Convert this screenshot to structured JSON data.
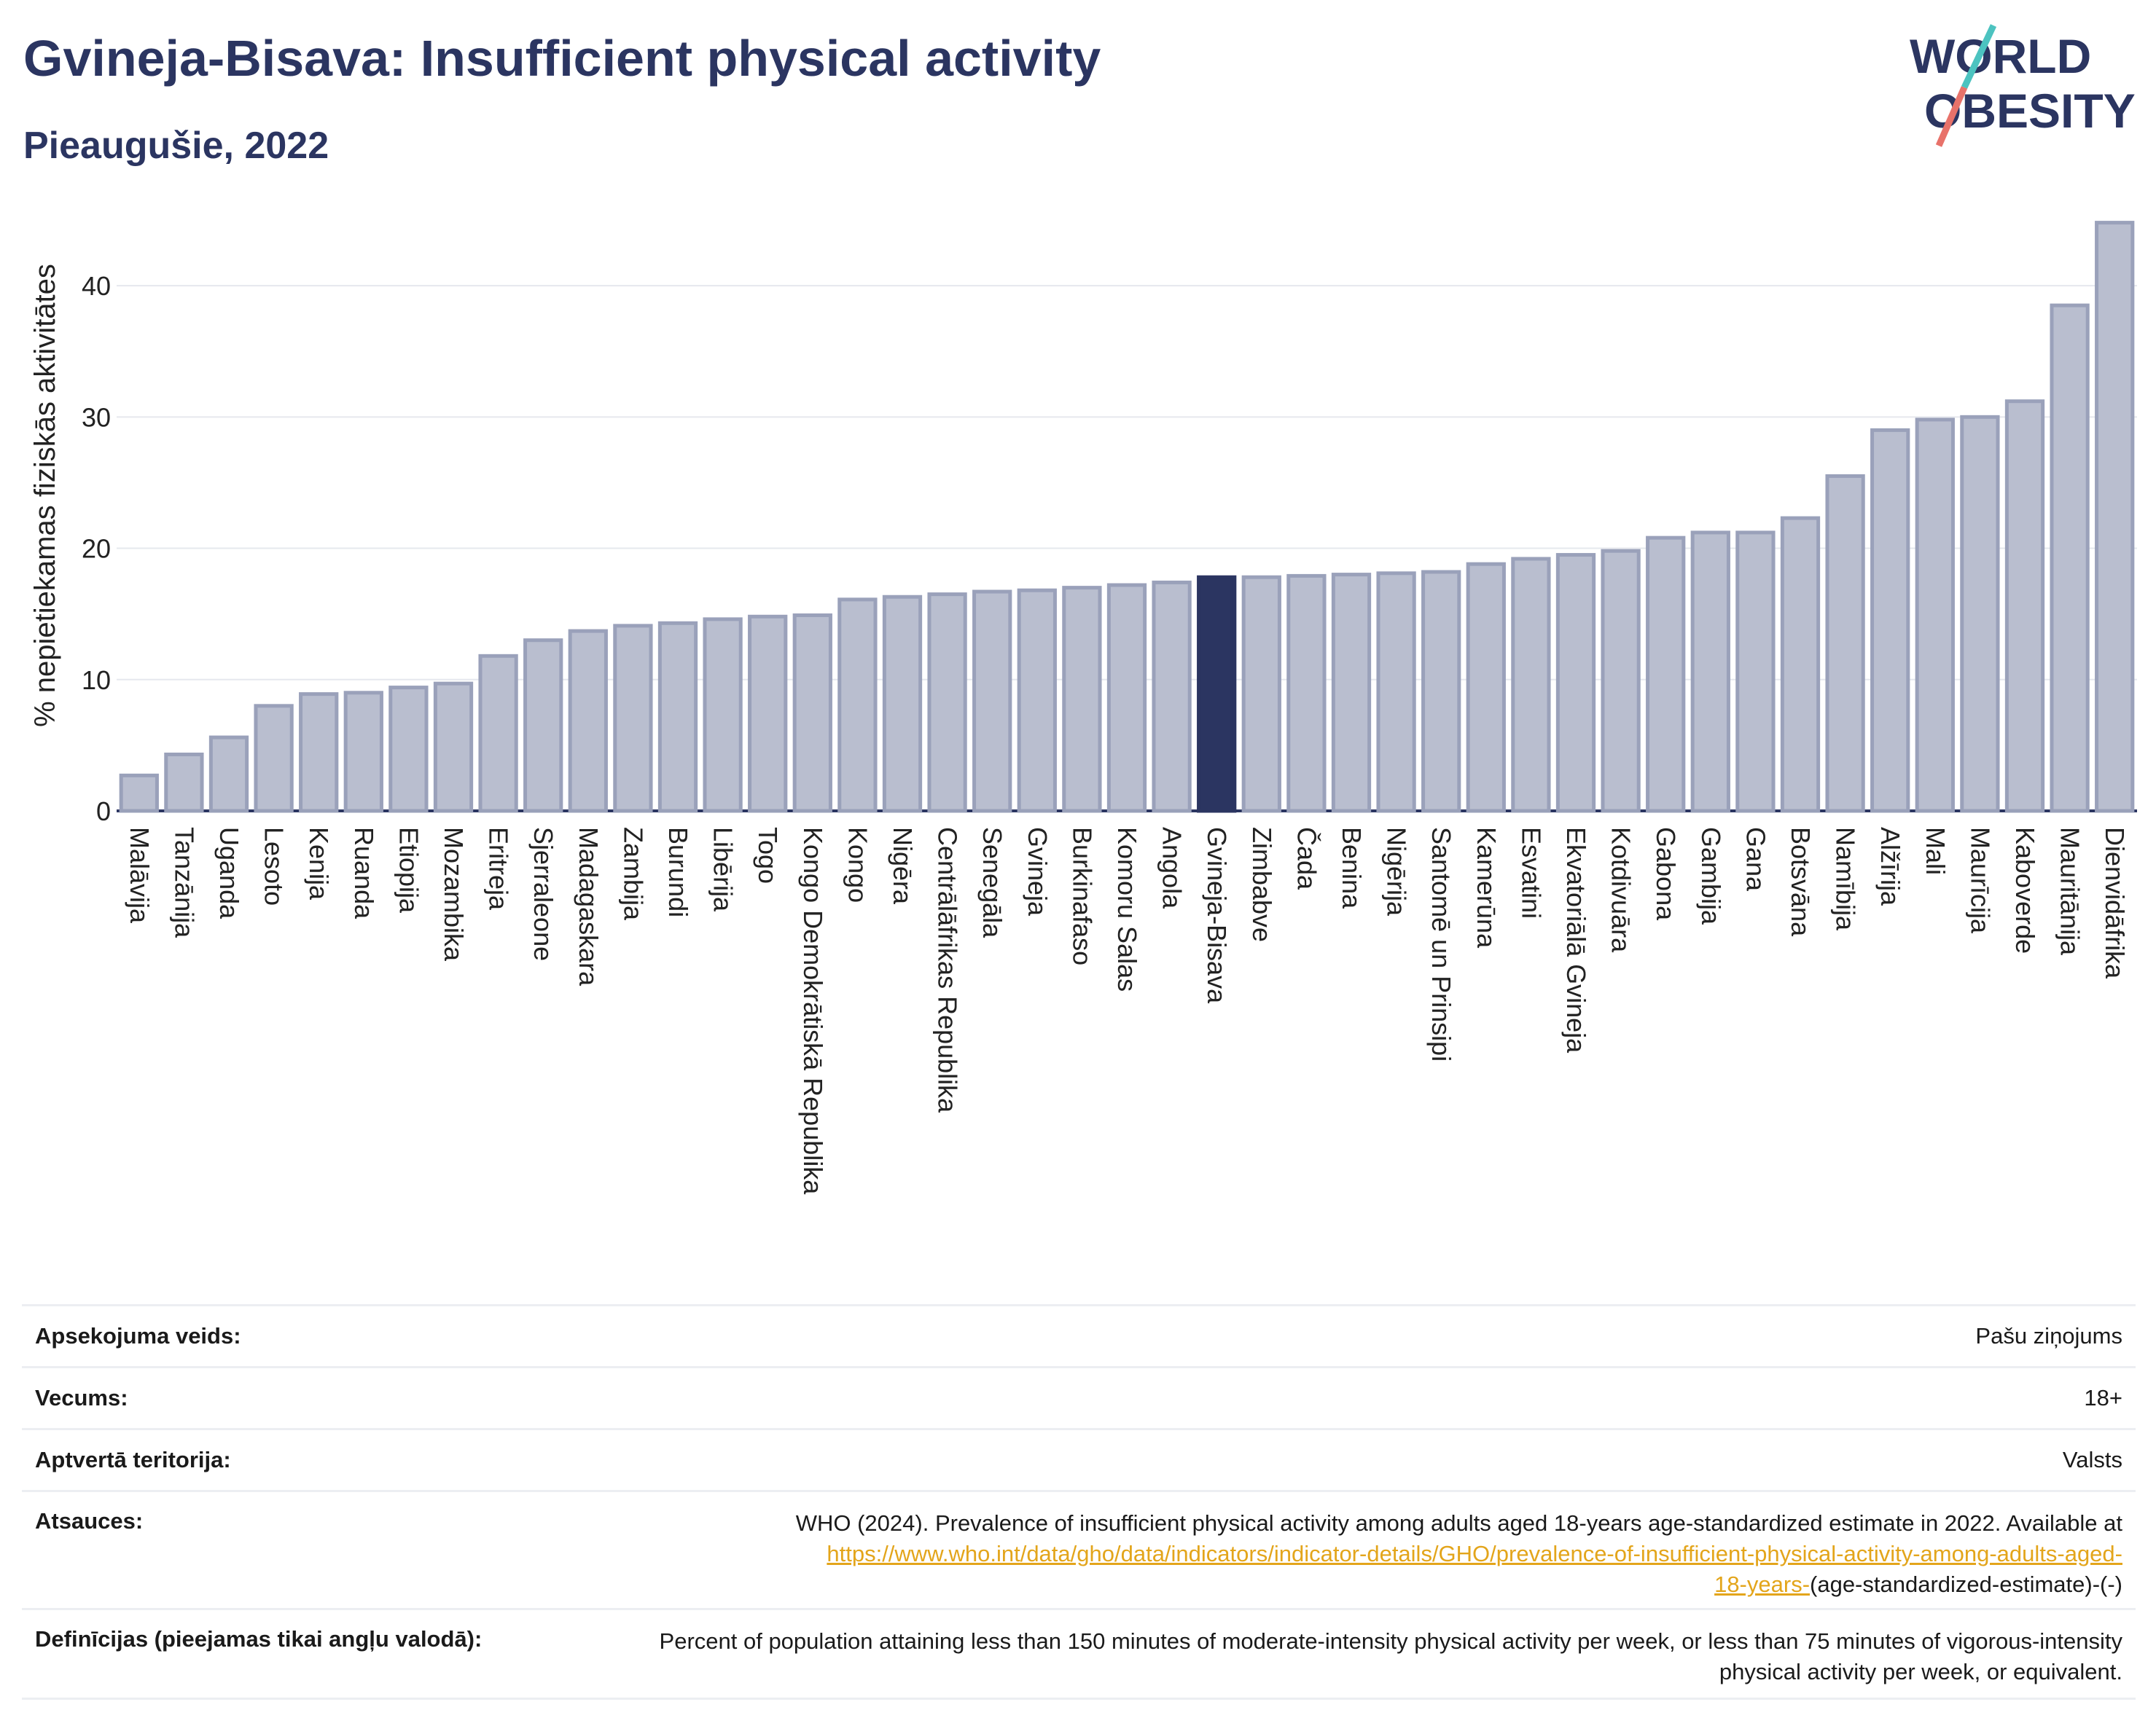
{
  "header": {
    "title": "Gvineja-Bisava: Insufficient physical activity",
    "subtitle": "Pieaugušie, 2022"
  },
  "logo": {
    "line1": "WORLD",
    "line2": "OBESITY"
  },
  "colors": {
    "bar": "#b9becf",
    "bar_stroke": "#9aa1ba",
    "highlight": "#2b3561",
    "axis": "#2b3561",
    "grid": "#e6e8ee",
    "accent_teal": "#4cc3c0",
    "accent_red": "#e8726a",
    "link": "#e3a51b"
  },
  "chart_data": {
    "type": "bar",
    "ylabel": "% nepietiekamas fiziskās aktivitātes",
    "ylim": [
      0,
      45
    ],
    "yticks": [
      0,
      10,
      20,
      30,
      40
    ],
    "grid": true,
    "highlight": "Gvineja-Bisava",
    "categories": [
      "Malāvija",
      "Tanzānija",
      "Uganda",
      "Lesoto",
      "Kenija",
      "Ruanda",
      "Etiopija",
      "Mozambika",
      "Eritreja",
      "Sjerraleone",
      "Madagaskara",
      "Zambija",
      "Burundi",
      "Libērija",
      "Togo",
      "Kongo Demokrātiskā Republika",
      "Kongo",
      "Nigēra",
      "Centrālāfrikas Republika",
      "Senegāla",
      "Gvineja",
      "Burkinafaso",
      "Komoru Salas",
      "Angola",
      "Gvineja-Bisava",
      "Zimbabve",
      "Čada",
      "Benina",
      "Nigērija",
      "Santomē un Prinsipi",
      "Kamerūna",
      "Esvatini",
      "Ekvatoriālā Gvineja",
      "Kotdivuāra",
      "Gabona",
      "Gambija",
      "Gana",
      "Botsvāna",
      "Namībija",
      "Alžīrija",
      "Mali",
      "Maurīcija",
      "Kaboverde",
      "Mauritānija",
      "Dienvidāfrika"
    ],
    "values": [
      2.7,
      4.3,
      5.6,
      8.0,
      8.9,
      9.0,
      9.4,
      9.7,
      11.8,
      13.0,
      13.7,
      14.1,
      14.3,
      14.6,
      14.8,
      14.9,
      16.1,
      16.3,
      16.5,
      16.7,
      16.8,
      17.0,
      17.2,
      17.4,
      17.8,
      17.8,
      17.9,
      18.0,
      18.1,
      18.2,
      18.8,
      19.2,
      19.5,
      19.8,
      20.8,
      21.2,
      21.2,
      22.3,
      25.5,
      29.0,
      29.8,
      30.0,
      31.2,
      38.5,
      44.8
    ]
  },
  "info": {
    "survey_label": "Apsekojuma veids:",
    "survey_value": "Pašu ziņojums",
    "age_label": "Vecums:",
    "age_value": "18+",
    "coverage_label": "Aptvertā teritorija:",
    "coverage_value": "Valsts",
    "refs_label": "Atsauces:",
    "refs_text": "WHO (2024). Prevalence of insufficient physical activity among adults aged 18-years age-standardized estimate in 2022. Available at",
    "refs_link_1": "https://www.who.int/data/gho/data/indicators/indicator-details/GHO/prevalence-of-insufficient-physical-activity-among-adults-aged-",
    "refs_link_2": "18-years-",
    "refs_tail": "(age-standardized-estimate)-(-)",
    "def_label": "Definīcijas (pieejamas tikai angļu valodā):",
    "def_text": "Percent of population attaining less than 150 minutes of moderate-intensity physical activity per week, or less than 75 minutes of vigorous-intensity physical activity per week, or equivalent."
  }
}
